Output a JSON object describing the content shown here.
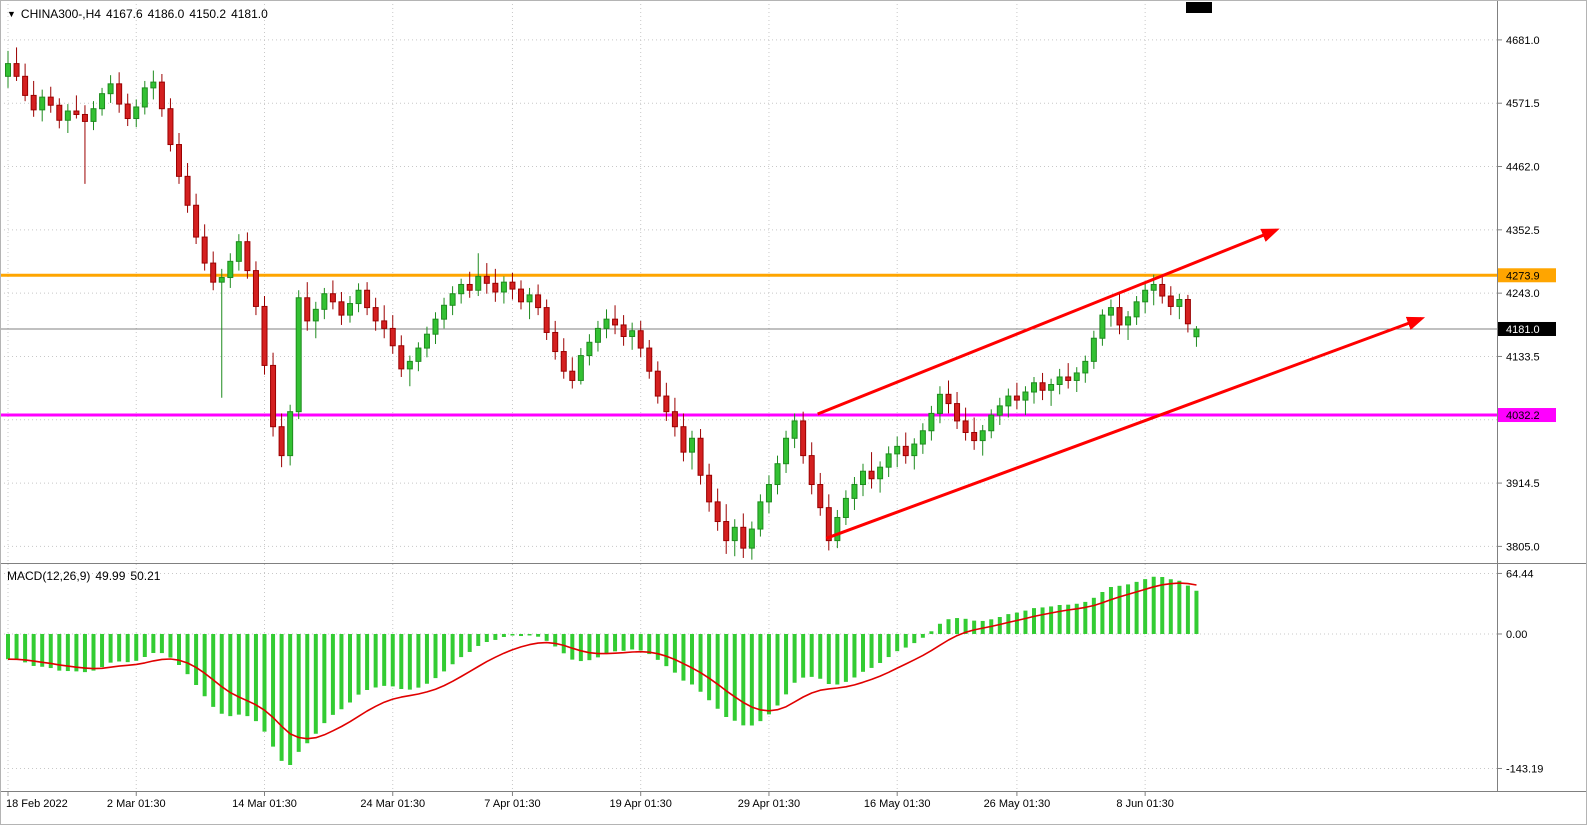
{
  "header": {
    "dropdown_icon": "▼",
    "title": "CHINA300-,H4",
    "open": "4167.6",
    "high": "4186.0",
    "low": "4150.2",
    "close": "4181.0"
  },
  "macd_header": {
    "label": "MACD(12,26,9)",
    "value1": "49.99",
    "value2": "50.21"
  },
  "time_scale": {
    "ticks": [
      {
        "label": "18 Feb 2022",
        "index": 0
      },
      {
        "label": "2 Mar 01:30",
        "index": 15
      },
      {
        "label": "14 Mar 01:30",
        "index": 30
      },
      {
        "label": "24 Mar 01:30",
        "index": 45
      },
      {
        "label": "7 Apr 01:30",
        "index": 59
      },
      {
        "label": "19 Apr 01:30",
        "index": 74
      },
      {
        "label": "29 Apr 01:30",
        "index": 89
      },
      {
        "label": "16 May 01:30",
        "index": 104
      },
      {
        "label": "26 May 01:30",
        "index": 118
      },
      {
        "label": "8 Jun 01:30",
        "index": 133
      }
    ]
  },
  "chart_data": [
    {
      "type": "candlestick",
      "symbol": "CHINA300-",
      "timeframe": "H4",
      "ylim": [
        3778,
        4750
      ],
      "grid": true,
      "y_ticks": [
        {
          "label": "4681.0",
          "price": 4681.0
        },
        {
          "label": "4571.5",
          "price": 4571.5
        },
        {
          "label": "4462.0",
          "price": 4462.0
        },
        {
          "label": "4352.5",
          "price": 4352.5
        },
        {
          "label": "4243.0",
          "price": 4243.0
        },
        {
          "label": "4133.5",
          "price": 4133.5
        },
        {
          "label": "4024.0",
          "price": 4024.0
        },
        {
          "label": "3914.5",
          "price": 3914.5
        },
        {
          "label": "3805.0",
          "price": 3805.0
        }
      ],
      "bull_color": "#33C133",
      "bear_color": "#D42020",
      "bull_border": "#1E8B1E",
      "bear_border": "#9B0000",
      "current_price": 4181.0,
      "current_label": "4181.0",
      "hlines": [
        {
          "price": 4273.9,
          "label": "4273.9",
          "color": "#FFA500",
          "label_text": "#000000"
        },
        {
          "price": 4032.2,
          "label": "4032.2",
          "color": "#FF00FF",
          "label_text": "#000000"
        }
      ],
      "trend_color": "#FF0000",
      "trend_arrows": [
        {
          "from": {
            "index": 94.7,
            "price": 4034
          },
          "to": {
            "index": 148.3,
            "price": 4352
          }
        },
        {
          "from": {
            "index": 95.7,
            "price": 3819
          },
          "to": {
            "index": 165.3,
            "price": 4199
          }
        }
      ],
      "ohlc": [
        [
          4618,
          4662,
          4598,
          4640
        ],
        [
          4640,
          4668,
          4610,
          4618
        ],
        [
          4618,
          4640,
          4575,
          4585
        ],
        [
          4585,
          4610,
          4548,
          4560
        ],
        [
          4560,
          4595,
          4540,
          4582
        ],
        [
          4582,
          4600,
          4555,
          4568
        ],
        [
          4568,
          4580,
          4528,
          4542
        ],
        [
          4542,
          4570,
          4520,
          4558
        ],
        [
          4558,
          4585,
          4545,
          4552
        ],
        [
          4552,
          4568,
          4432,
          4540
        ],
        [
          4540,
          4575,
          4525,
          4562
        ],
        [
          4562,
          4598,
          4550,
          4588
        ],
        [
          4588,
          4620,
          4572,
          4605
        ],
        [
          4605,
          4625,
          4555,
          4570
        ],
        [
          4570,
          4588,
          4532,
          4545
        ],
        [
          4545,
          4578,
          4530,
          4565
        ],
        [
          4565,
          4610,
          4552,
          4598
        ],
        [
          4598,
          4628,
          4578,
          4608
        ],
        [
          4608,
          4622,
          4548,
          4562
        ],
        [
          4562,
          4580,
          4488,
          4500
        ],
        [
          4500,
          4520,
          4432,
          4445
        ],
        [
          4445,
          4468,
          4382,
          4395
        ],
        [
          4395,
          4415,
          4328,
          4340
        ],
        [
          4340,
          4362,
          4282,
          4295
        ],
        [
          4295,
          4315,
          4248,
          4262
        ],
        [
          4262,
          4285,
          4062,
          4270
        ],
        [
          4270,
          4312,
          4252,
          4298
        ],
        [
          4298,
          4345,
          4282,
          4332
        ],
        [
          4332,
          4348,
          4268,
          4282
        ],
        [
          4282,
          4298,
          4205,
          4220
        ],
        [
          4220,
          4238,
          4102,
          4118
        ],
        [
          4118,
          4140,
          3995,
          4012
        ],
        [
          4012,
          4035,
          3942,
          3962
        ],
        [
          3962,
          4050,
          3945,
          4038
        ],
        [
          4038,
          4248,
          4025,
          4235
        ],
        [
          4235,
          4262,
          4178,
          4195
        ],
        [
          4195,
          4228,
          4165,
          4215
        ],
        [
          4215,
          4252,
          4198,
          4242
        ],
        [
          4242,
          4265,
          4215,
          4228
        ],
        [
          4228,
          4245,
          4188,
          4205
        ],
        [
          4205,
          4238,
          4192,
          4225
        ],
        [
          4225,
          4260,
          4210,
          4248
        ],
        [
          4248,
          4262,
          4205,
          4218
        ],
        [
          4218,
          4235,
          4178,
          4195
        ],
        [
          4195,
          4222,
          4165,
          4182
        ],
        [
          4182,
          4205,
          4138,
          4152
        ],
        [
          4152,
          4170,
          4098,
          4112
        ],
        [
          4112,
          4135,
          4082,
          4125
        ],
        [
          4125,
          4158,
          4108,
          4148
        ],
        [
          4148,
          4185,
          4132,
          4172
        ],
        [
          4172,
          4210,
          4155,
          4198
        ],
        [
          4198,
          4235,
          4182,
          4222
        ],
        [
          4222,
          4255,
          4205,
          4242
        ],
        [
          4242,
          4268,
          4225,
          4258
        ],
        [
          4258,
          4280,
          4235,
          4248
        ],
        [
          4248,
          4312,
          4238,
          4272
        ],
        [
          4272,
          4295,
          4242,
          4260
        ],
        [
          4260,
          4285,
          4228,
          4245
        ],
        [
          4245,
          4272,
          4225,
          4262
        ],
        [
          4262,
          4278,
          4232,
          4250
        ],
        [
          4250,
          4265,
          4215,
          4228
        ],
        [
          4228,
          4252,
          4198,
          4240
        ],
        [
          4240,
          4258,
          4205,
          4218
        ],
        [
          4218,
          4232,
          4162,
          4175
        ],
        [
          4175,
          4195,
          4128,
          4142
        ],
        [
          4142,
          4165,
          4095,
          4108
        ],
        [
          4108,
          4132,
          4078,
          4092
        ],
        [
          4092,
          4148,
          4085,
          4135
        ],
        [
          4135,
          4172,
          4118,
          4158
        ],
        [
          4158,
          4195,
          4142,
          4182
        ],
        [
          4182,
          4215,
          4165,
          4198
        ],
        [
          4198,
          4222,
          4172,
          4188
        ],
        [
          4188,
          4205,
          4152,
          4168
        ],
        [
          4168,
          4192,
          4145,
          4178
        ],
        [
          4178,
          4195,
          4132,
          4148
        ],
        [
          4148,
          4162,
          4095,
          4108
        ],
        [
          4108,
          4125,
          4052,
          4065
        ],
        [
          4065,
          4088,
          4022,
          4038
        ],
        [
          4038,
          4062,
          3995,
          4012
        ],
        [
          4012,
          4035,
          3952,
          3968
        ],
        [
          3968,
          4005,
          3938,
          3992
        ],
        [
          3992,
          4008,
          3912,
          3928
        ],
        [
          3928,
          3948,
          3865,
          3882
        ],
        [
          3882,
          3905,
          3832,
          3848
        ],
        [
          3848,
          3878,
          3792,
          3815
        ],
        [
          3815,
          3852,
          3788,
          3838
        ],
        [
          3838,
          3862,
          3785,
          3802
        ],
        [
          3802,
          3848,
          3782,
          3835
        ],
        [
          3835,
          3895,
          3822,
          3882
        ],
        [
          3882,
          3928,
          3862,
          3912
        ],
        [
          3912,
          3962,
          3895,
          3948
        ],
        [
          3948,
          4005,
          3932,
          3992
        ],
        [
          3992,
          4035,
          3975,
          4022
        ],
        [
          4022,
          4038,
          3948,
          3962
        ],
        [
          3962,
          3985,
          3895,
          3912
        ],
        [
          3912,
          3932,
          3858,
          3872
        ],
        [
          3872,
          3895,
          3798,
          3815
        ],
        [
          3815,
          3868,
          3802,
          3855
        ],
        [
          3855,
          3902,
          3842,
          3888
        ],
        [
          3888,
          3925,
          3868,
          3912
        ],
        [
          3912,
          3948,
          3892,
          3935
        ],
        [
          3935,
          3968,
          3905,
          3922
        ],
        [
          3922,
          3952,
          3898,
          3942
        ],
        [
          3942,
          3978,
          3925,
          3965
        ],
        [
          3965,
          3995,
          3942,
          3978
        ],
        [
          3978,
          4002,
          3948,
          3962
        ],
        [
          3962,
          3992,
          3938,
          3982
        ],
        [
          3982,
          4018,
          3965,
          4005
        ],
        [
          4005,
          4048,
          3988,
          4035
        ],
        [
          4035,
          4082,
          4018,
          4068
        ],
        [
          4068,
          4092,
          4035,
          4052
        ],
        [
          4052,
          4072,
          4008,
          4022
        ],
        [
          4022,
          4045,
          3988,
          4002
        ],
        [
          4002,
          4028,
          3972,
          3988
        ],
        [
          3988,
          4015,
          3962,
          4005
        ],
        [
          4005,
          4042,
          3992,
          4032
        ],
        [
          4032,
          4062,
          4015,
          4048
        ],
        [
          4048,
          4078,
          4028,
          4065
        ],
        [
          4065,
          4088,
          4042,
          4058
        ],
        [
          4058,
          4082,
          4032,
          4072
        ],
        [
          4072,
          4098,
          4052,
          4088
        ],
        [
          4088,
          4105,
          4058,
          4075
        ],
        [
          4075,
          4095,
          4048,
          4085
        ],
        [
          4085,
          4112,
          4068,
          4098
        ],
        [
          4098,
          4122,
          4078,
          4092
        ],
        [
          4092,
          4115,
          4072,
          4105
        ],
        [
          4105,
          4135,
          4088,
          4125
        ],
        [
          4125,
          4178,
          4112,
          4165
        ],
        [
          4165,
          4215,
          4152,
          4205
        ],
        [
          4205,
          4232,
          4185,
          4218
        ],
        [
          4218,
          4242,
          4172,
          4188
        ],
        [
          4188,
          4212,
          4162,
          4202
        ],
        [
          4202,
          4238,
          4188,
          4228
        ],
        [
          4228,
          4262,
          4208,
          4248
        ],
        [
          4248,
          4275,
          4222,
          4258
        ],
        [
          4258,
          4272,
          4225,
          4238
        ],
        [
          4238,
          4255,
          4205,
          4220
        ],
        [
          4220,
          4242,
          4198,
          4232
        ],
        [
          4232,
          4240,
          4175,
          4190
        ],
        [
          4167.6,
          4186.0,
          4150.2,
          4181.0
        ]
      ]
    },
    {
      "type": "bar",
      "name": "MACD",
      "params": [
        12,
        26,
        9
      ],
      "ylim": [
        -166.1,
        71.3
      ],
      "y_ticks": [
        {
          "label": "64.44",
          "value": 64.44
        },
        {
          "label": "0.00",
          "value": 0
        },
        {
          "label": "-143.19",
          "value": -143.19
        }
      ],
      "histogram_color": "#33CC33",
      "signal_color": "#E00000",
      "current_macd": 49.99,
      "current_signal": 50.21
    }
  ]
}
